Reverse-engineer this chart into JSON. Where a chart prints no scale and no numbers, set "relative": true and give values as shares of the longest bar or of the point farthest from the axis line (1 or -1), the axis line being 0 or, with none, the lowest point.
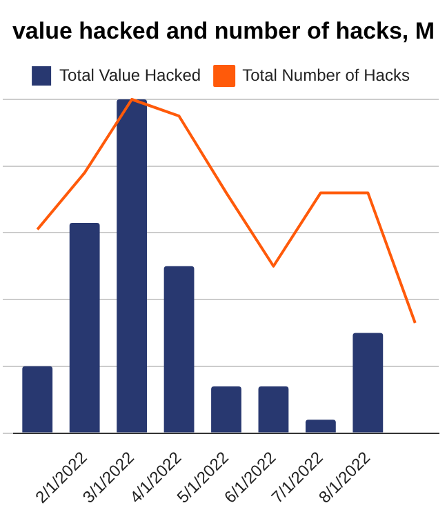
{
  "chart_data": {
    "type": "bar",
    "title": "value hacked and number of hacks, M",
    "relative": true,
    "grid": "y",
    "legend": "top",
    "categories": [
      null,
      "2/1/2022",
      "3/1/2022",
      "4/1/2022",
      "5/1/2022",
      "6/1/2022",
      "7/1/2022",
      "8/1/2022",
      null
    ],
    "series": [
      {
        "name": "Total Value Hacked",
        "color": "#283870",
        "values": [
          0.2,
          0.63,
          1,
          0.5,
          0.14,
          0.14,
          0.04,
          0.3,
          null
        ]
      },
      {
        "name": "Total Number of Hacks",
        "type": "line",
        "color": "#ff5a0a",
        "values": [
          0.61,
          0.78,
          1,
          0.95,
          0.72,
          0.5,
          0.72,
          0.72,
          0.33
        ]
      }
    ]
  }
}
